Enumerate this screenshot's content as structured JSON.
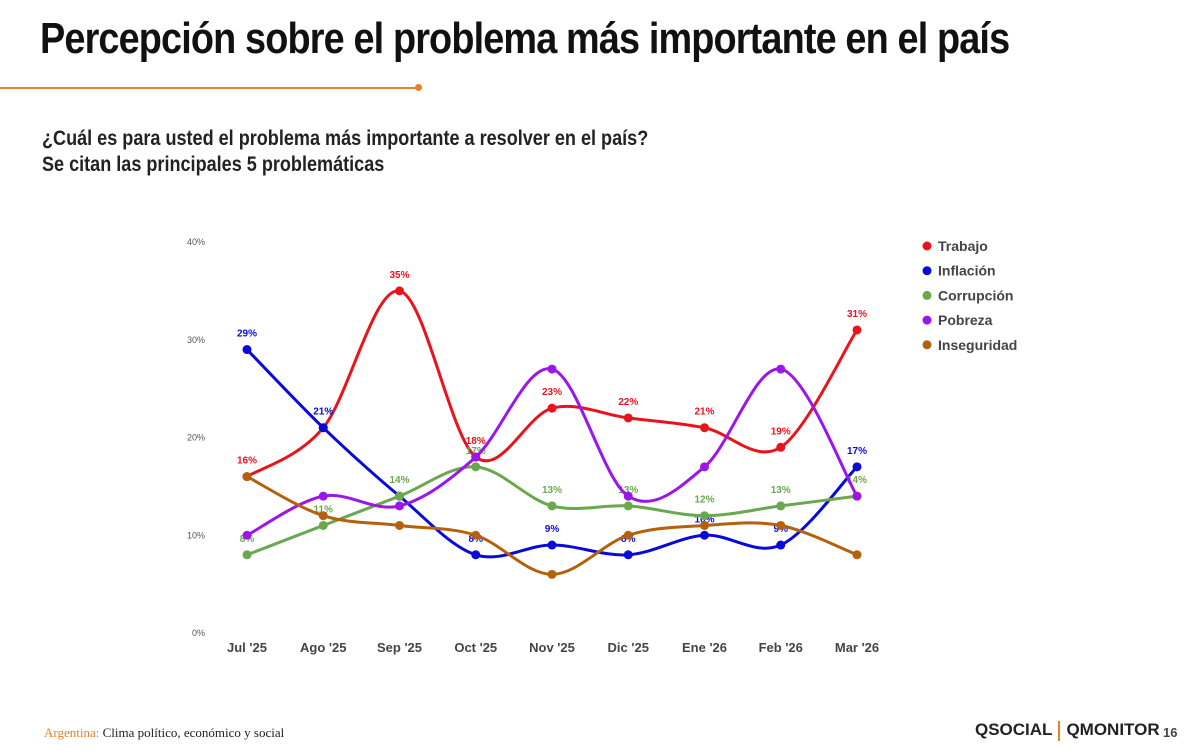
{
  "header": {
    "title": "Percepción sobre el problema más importante en el país",
    "question": "¿Cuál es para usted el problema más importante a resolver en el país?",
    "note": "Se citan las principales 5 problemáticas"
  },
  "chart_data": {
    "type": "line",
    "categories": [
      "Jul '25",
      "Ago '25",
      "Sep '25",
      "Oct '25",
      "Nov '25",
      "Dic '25",
      "Ene '26",
      "Feb '26",
      "Mar '26"
    ],
    "yticks": [
      "0%",
      "10%",
      "20%",
      "30%",
      "40%"
    ],
    "ylim": [
      0,
      40
    ],
    "legend_position": "right",
    "series": [
      {
        "name": "Trabajo",
        "color": "#e8141c",
        "values": [
          16,
          21,
          35,
          18,
          23,
          22,
          21,
          19,
          31
        ],
        "labels": [
          true,
          false,
          true,
          true,
          true,
          true,
          true,
          true,
          true
        ]
      },
      {
        "name": "Inflación",
        "color": "#0a0ad6",
        "values": [
          29,
          21,
          14,
          8,
          9,
          8,
          10,
          9,
          17
        ],
        "labels": [
          true,
          true,
          false,
          true,
          true,
          true,
          true,
          true,
          true
        ]
      },
      {
        "name": "Corrupción",
        "color": "#6aa84f",
        "values": [
          8,
          11,
          14,
          17,
          13,
          13,
          12,
          13,
          14
        ],
        "labels": [
          true,
          true,
          true,
          true,
          true,
          true,
          true,
          true,
          true
        ]
      },
      {
        "name": "Pobreza",
        "color": "#9b16e8",
        "values": [
          10,
          14,
          13,
          18,
          27,
          14,
          17,
          27,
          14
        ],
        "labels": [
          false,
          false,
          false,
          false,
          false,
          false,
          false,
          false,
          false
        ]
      },
      {
        "name": "Inseguridad",
        "color": "#b4600c",
        "values": [
          16,
          12,
          11,
          10,
          6,
          10,
          11,
          11,
          8
        ],
        "labels": [
          false,
          false,
          false,
          false,
          false,
          false,
          false,
          false,
          false
        ]
      }
    ]
  },
  "footer": {
    "country": "Argentina:",
    "topic": "Clima político, económico y social",
    "logo1": "QSOCIAL",
    "logo2": "QMONITOR",
    "page": "16"
  }
}
